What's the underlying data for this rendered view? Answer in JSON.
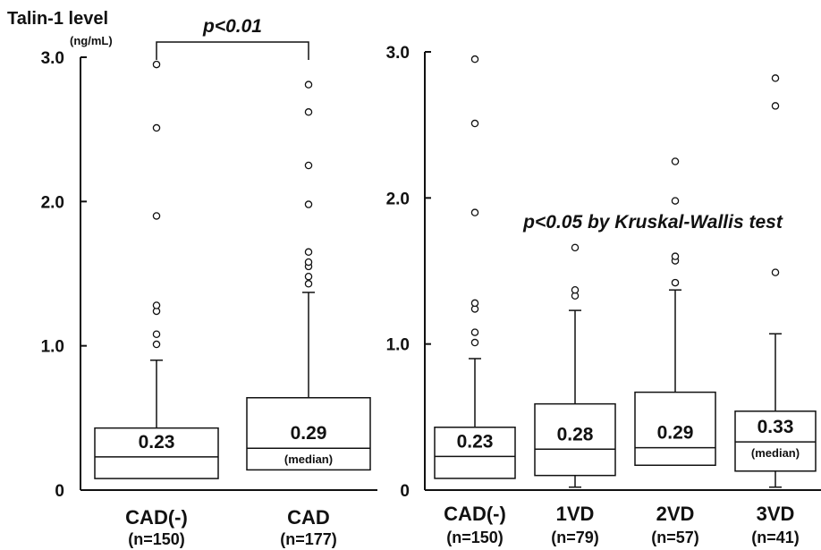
{
  "y_axis": {
    "label": "Talin-1 level",
    "unit": "(ng/mL)"
  },
  "median_note": "(median)",
  "chart_data": [
    {
      "type": "boxplot",
      "ylim": [
        0,
        3.0
      ],
      "yticks": [
        {
          "value": 0,
          "label": "0"
        },
        {
          "value": 1.0,
          "label": "1.0"
        },
        {
          "value": 2.0,
          "label": "2.0"
        },
        {
          "value": 3.0,
          "label": "3.0"
        }
      ],
      "annotation": "p<0.01",
      "groups": [
        {
          "name": "CAD(-)",
          "n": "(n=150)",
          "median": 0.23,
          "median_label": "0.23",
          "q1": 0.08,
          "q3": 0.43,
          "whisker_low": 0.08,
          "whisker_high": 0.9,
          "outliers": [
            1.01,
            1.08,
            1.24,
            1.28,
            1.9,
            2.51,
            2.95
          ],
          "show_median_note": false
        },
        {
          "name": "CAD",
          "n": "(n=177)",
          "median": 0.29,
          "median_label": "0.29",
          "q1": 0.14,
          "q3": 0.64,
          "whisker_low": 0.14,
          "whisker_high": 1.37,
          "outliers": [
            1.43,
            1.48,
            1.55,
            1.58,
            1.65,
            1.98,
            2.25,
            2.62,
            2.81
          ],
          "show_median_note": true
        }
      ]
    },
    {
      "type": "boxplot",
      "ylim": [
        0,
        3.0
      ],
      "yticks": [
        {
          "value": 0,
          "label": "0"
        },
        {
          "value": 1.0,
          "label": "1.0"
        },
        {
          "value": 2.0,
          "label": "2.0"
        },
        {
          "value": 3.0,
          "label": "3.0"
        }
      ],
      "annotation": "p<0.05 by Kruskal-Wallis test",
      "groups": [
        {
          "name": "CAD(-)",
          "n": "(n=150)",
          "median": 0.23,
          "median_label": "0.23",
          "q1": 0.08,
          "q3": 0.43,
          "whisker_low": 0.08,
          "whisker_high": 0.9,
          "outliers": [
            1.01,
            1.08,
            1.24,
            1.28,
            1.9,
            2.51,
            2.95
          ],
          "show_median_note": false
        },
        {
          "name": "1VD",
          "n": "(n=79)",
          "median": 0.28,
          "median_label": "0.28",
          "q1": 0.1,
          "q3": 0.59,
          "whisker_low": 0.02,
          "whisker_high": 1.23,
          "outliers": [
            1.33,
            1.37,
            1.66
          ],
          "show_median_note": false
        },
        {
          "name": "2VD",
          "n": "(n=57)",
          "median": 0.29,
          "median_label": "0.29",
          "q1": 0.17,
          "q3": 0.67,
          "whisker_low": 0.17,
          "whisker_high": 1.37,
          "outliers": [
            1.42,
            1.57,
            1.6,
            1.98,
            2.25
          ],
          "show_median_note": false
        },
        {
          "name": "3VD",
          "n": "(n=41)",
          "median": 0.33,
          "median_label": "0.33",
          "q1": 0.13,
          "q3": 0.54,
          "whisker_low": 0.02,
          "whisker_high": 1.07,
          "outliers": [
            1.49,
            2.63,
            2.82
          ],
          "show_median_note": true
        }
      ]
    }
  ]
}
